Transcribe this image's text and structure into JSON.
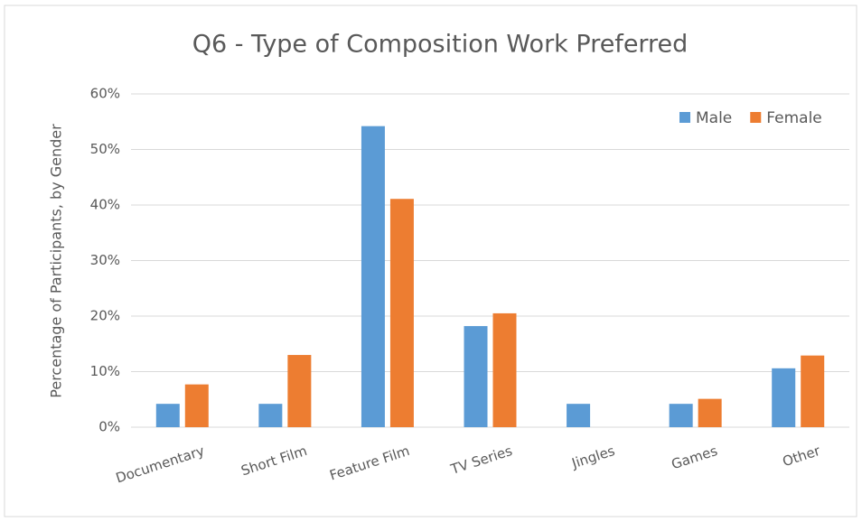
{
  "chart_data": {
    "type": "bar",
    "title": "Q6 - Type of Composition Work Preferred",
    "y_label": "Percentage of Participants, by Gender",
    "categories": [
      "Documentary",
      "Short Film",
      "Feature Film",
      "TV Series",
      "Jingles",
      "Games",
      "Other"
    ],
    "series": [
      {
        "name": "Male",
        "color": "#5b9bd5",
        "values": [
          4.2,
          4.2,
          54.2,
          18.2,
          4.2,
          4.2,
          10.6
        ]
      },
      {
        "name": "Female",
        "color": "#ed7d31",
        "values": [
          7.7,
          13,
          41.1,
          20.5,
          0,
          5.1,
          12.9
        ]
      }
    ],
    "ylim": [
      0,
      60
    ],
    "yticks": [
      {
        "value": 0,
        "label": "0%"
      },
      {
        "value": 10,
        "label": "10%"
      },
      {
        "value": 20,
        "label": "20%"
      },
      {
        "value": 30,
        "label": "30%"
      },
      {
        "value": 40,
        "label": "40%"
      },
      {
        "value": 50,
        "label": "50%"
      },
      {
        "value": 60,
        "label": "60%"
      }
    ],
    "grid": true,
    "legend": "top-right"
  }
}
